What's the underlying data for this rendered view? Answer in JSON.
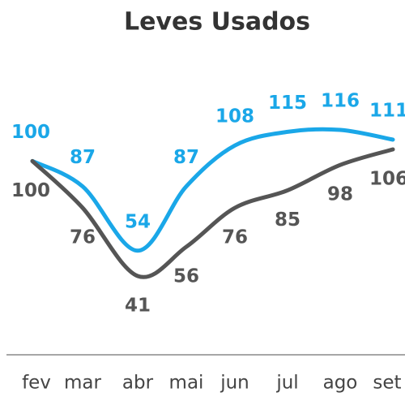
{
  "chart_data": {
    "type": "line",
    "title": "Leves Usados",
    "categories": [
      "fev",
      "mar",
      "abr",
      "mai",
      "jun",
      "jul",
      "ago",
      "set"
    ],
    "series": [
      {
        "color": "#1aa7e8",
        "values": [
          100,
          87,
          54,
          87,
          108,
          115,
          116,
          111
        ]
      },
      {
        "color": "#555555",
        "values": [
          100,
          76,
          41,
          56,
          76,
          85,
          98,
          106
        ]
      }
    ]
  }
}
